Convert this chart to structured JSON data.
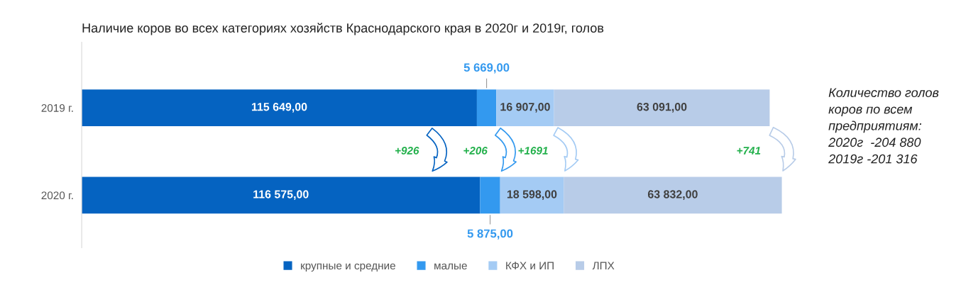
{
  "chart_data": {
    "type": "bar",
    "orientation": "horizontal",
    "stacked": true,
    "title": "Наличие коров во всех категориях хозяйств Краснодарского края в 2020г и 2019г, голов",
    "categories": [
      "2019 г.",
      "2020 г."
    ],
    "series": [
      {
        "name": "крупные и средние",
        "color": "#0563c1",
        "values": [
          115649,
          116575
        ],
        "value_labels": [
          "115 649,00",
          "116 575,00"
        ]
      },
      {
        "name": "малые",
        "color": "#3399ef",
        "values": [
          5669,
          5875
        ],
        "value_labels": [
          "5 669,00",
          "5 875,00"
        ]
      },
      {
        "name": "КФХ и ИП",
        "color": "#a4cbf4",
        "values": [
          16907,
          18598
        ],
        "value_labels": [
          "16 907,00",
          "18 598,00"
        ]
      },
      {
        "name": "ЛПХ",
        "color": "#b8cce8",
        "values": [
          63091,
          63832
        ],
        "value_labels": [
          "63 091,00",
          "63 832,00"
        ]
      }
    ],
    "annotations": [
      "+926",
      "+206",
      "+1691",
      "+741",
      "Количество голов коров по всем предприятиям:\n2020г  -204 880\n2019г -201 316"
    ],
    "legend": "bottom"
  }
}
